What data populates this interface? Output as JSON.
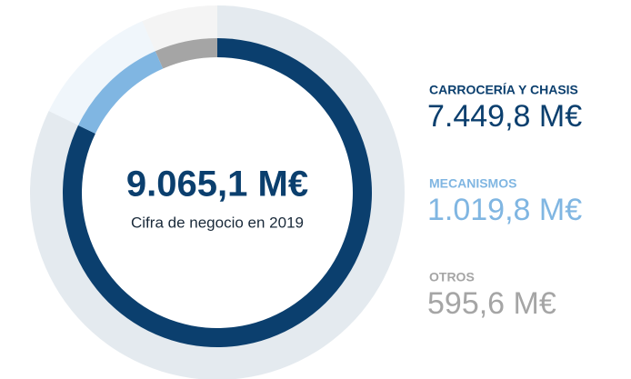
{
  "chart_data": {
    "type": "pie",
    "categories": [
      "CARROCERÍA Y CHASIS",
      "MECANISMOS",
      "OTROS"
    ],
    "values": [
      7449.8,
      1019.8,
      595.6
    ],
    "value_labels": [
      "7.449,8 M€",
      "1.019,8 M€",
      "595,6 M€"
    ],
    "colors": [
      "#0b3f6e",
      "#80b6e2",
      "#a5a5a5"
    ],
    "total": 9065.1,
    "total_label": "9.065,1 M€",
    "subtitle": "Cifra de negocio en 2019"
  }
}
